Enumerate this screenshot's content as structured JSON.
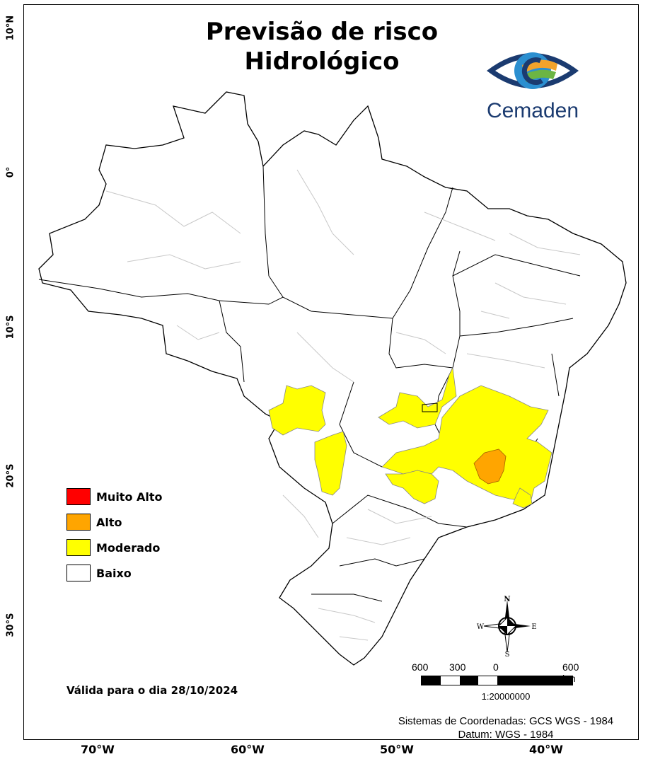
{
  "title_line1": "Previsão de risco",
  "title_line2": "Hidrológico",
  "logo": {
    "text": "Cemaden",
    "colors": [
      "#1b3b70",
      "#2b8fd0",
      "#f2a32b",
      "#6cb543"
    ]
  },
  "latitude_labels": [
    "10°N",
    "0°",
    "10°S",
    "20°S",
    "30°S"
  ],
  "longitude_labels": [
    "70°W",
    "60°W",
    "50°W",
    "40°W"
  ],
  "legend": [
    {
      "label": "Muito Alto",
      "color": "#ff0000"
    },
    {
      "label": "Alto",
      "color": "#ffa500"
    },
    {
      "label": "Moderado",
      "color": "#ffff00"
    },
    {
      "label": "Baixo",
      "color": "#ffffff"
    }
  ],
  "validity": "Válida para o dia 28/10/2024",
  "compass": {
    "n": "N",
    "s": "S",
    "e": "E",
    "w": "W"
  },
  "scale": {
    "labels": [
      "600",
      "300",
      "0",
      "600 km"
    ],
    "ratio": "1:20000000"
  },
  "coordinate_system": "Sistemas de Coordenadas: GCS WGS - 1984",
  "datum": "Datum: WGS - 1984"
}
